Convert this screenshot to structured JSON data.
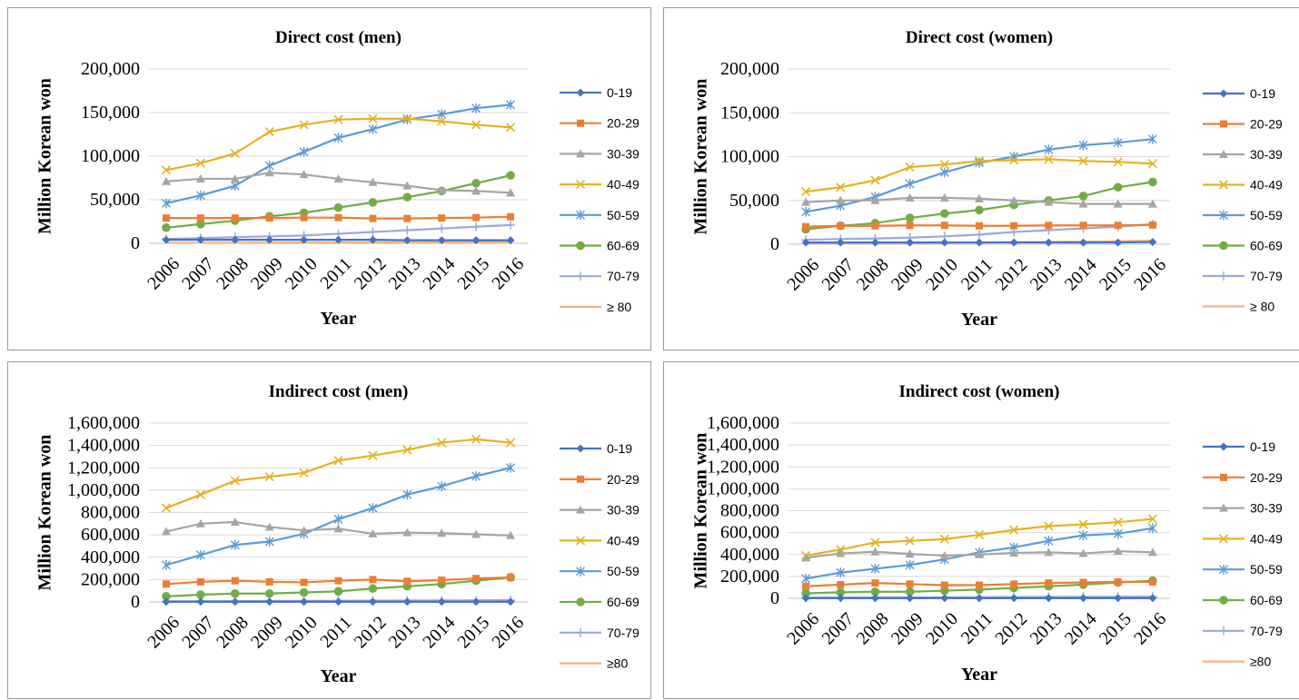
{
  "colors": {
    "0-19": "#4472c4",
    "20-29": "#ed7d31",
    "30-39": "#a5a5a5",
    "40-49": "#e6b120",
    "50-59": "#5b9bd5",
    "60-69": "#70ad47",
    "70-79": "#9aa8dc",
    "80": "#f4b183"
  },
  "chart_data": [
    {
      "type": "line",
      "title": "Direct cost (men)",
      "xlabel": "Year",
      "ylabel": "Million Korean won",
      "x": [
        "2006",
        "2007",
        "2008",
        "2009",
        "2010",
        "2011",
        "2012",
        "2013",
        "2014",
        "2015",
        "2016"
      ],
      "ylim": [
        0,
        200000
      ],
      "yticks": [
        "0",
        "50,000",
        "100,000",
        "150,000",
        "200,000"
      ],
      "grid": true,
      "legend": "right",
      "series": [
        {
          "name": "0-19",
          "marker": "diamond",
          "values": [
            4000,
            4000,
            4000,
            4000,
            4000,
            4000,
            4000,
            3500,
            3500,
            3500,
            3500
          ]
        },
        {
          "name": "20-29",
          "marker": "square",
          "values": [
            29000,
            29000,
            29000,
            29000,
            29500,
            29500,
            28500,
            28500,
            29000,
            29500,
            30500
          ]
        },
        {
          "name": "30-39",
          "marker": "triangle",
          "values": [
            71000,
            74000,
            74000,
            81000,
            79000,
            74000,
            70000,
            66000,
            61000,
            60000,
            58000
          ]
        },
        {
          "name": "40-49",
          "marker": "x",
          "values": [
            84000,
            92000,
            103000,
            128000,
            136000,
            142000,
            143000,
            143000,
            140000,
            136000,
            133000
          ]
        },
        {
          "name": "50-59",
          "marker": "star",
          "values": [
            46000,
            55000,
            66000,
            89000,
            105000,
            121000,
            131000,
            142000,
            148000,
            155000,
            159000
          ]
        },
        {
          "name": "60-69",
          "marker": "circle",
          "values": [
            18000,
            22000,
            26000,
            31000,
            35000,
            41000,
            47000,
            53000,
            60000,
            69000,
            78000
          ]
        },
        {
          "name": "70-79",
          "marker": "plus",
          "values": [
            5000,
            6000,
            7000,
            8000,
            9000,
            11000,
            13000,
            15000,
            17000,
            19000,
            21000
          ]
        },
        {
          "name": "≥ 80",
          "marker": "none",
          "values": [
            500,
            600,
            700,
            800,
            900,
            1000,
            1100,
            1200,
            1300,
            1400,
            1500
          ]
        }
      ]
    },
    {
      "type": "line",
      "title": "Direct cost (women)",
      "xlabel": "Year",
      "ylabel": "Million Korean won",
      "x": [
        "2006",
        "2007",
        "2008",
        "2009",
        "2010",
        "2011",
        "2012",
        "2013",
        "2014",
        "2015",
        "2016"
      ],
      "ylim": [
        0,
        200000
      ],
      "yticks": [
        "0",
        "50,000",
        "100,000",
        "150,000",
        "200,000"
      ],
      "grid": true,
      "legend": "right",
      "series": [
        {
          "name": "0-19",
          "marker": "diamond",
          "values": [
            2000,
            2000,
            2000,
            2000,
            2000,
            2000,
            2000,
            2000,
            2000,
            2000,
            2500
          ]
        },
        {
          "name": "20-29",
          "marker": "square",
          "values": [
            20000,
            21000,
            21000,
            21500,
            21500,
            21000,
            21000,
            21500,
            21500,
            21500,
            22000
          ]
        },
        {
          "name": "30-39",
          "marker": "triangle",
          "values": [
            48000,
            50000,
            50000,
            53000,
            53000,
            52000,
            50000,
            48000,
            46000,
            46000,
            46000
          ]
        },
        {
          "name": "40-49",
          "marker": "x",
          "values": [
            60000,
            65000,
            73000,
            88000,
            91000,
            95000,
            96000,
            97000,
            95000,
            94000,
            92000
          ]
        },
        {
          "name": "50-59",
          "marker": "star",
          "values": [
            37000,
            44000,
            54000,
            69000,
            82000,
            93000,
            100000,
            108000,
            113000,
            116000,
            120000
          ]
        },
        {
          "name": "60-69",
          "marker": "circle",
          "values": [
            17000,
            21000,
            24000,
            30000,
            35000,
            39000,
            45000,
            50000,
            55000,
            65000,
            71000
          ]
        },
        {
          "name": "70-79",
          "marker": "plus",
          "values": [
            5000,
            6000,
            6500,
            7500,
            9000,
            11000,
            14000,
            16000,
            18000,
            20000,
            23000
          ]
        },
        {
          "name": "≥ 80",
          "marker": "none",
          "values": [
            1000,
            1200,
            1400,
            1600,
            1800,
            2000,
            2300,
            2600,
            3000,
            3500,
            4000
          ]
        }
      ]
    },
    {
      "type": "line",
      "title": "Indirect cost (men)",
      "xlabel": "Year",
      "ylabel": "Million Korean won",
      "x": [
        "2006",
        "2007",
        "2008",
        "2009",
        "2010",
        "2011",
        "2012",
        "2013",
        "2014",
        "2015",
        "2016"
      ],
      "ylim": [
        0,
        1600000
      ],
      "yticks": [
        "0",
        "200,000",
        "400,000",
        "600,000",
        "800,000",
        "1,000,000",
        "1,200,000",
        "1,400,000",
        "1,600,000"
      ],
      "grid": true,
      "legend": "right",
      "series": [
        {
          "name": "0-19",
          "marker": "diamond",
          "values": [
            2000,
            2000,
            2000,
            2000,
            2000,
            2000,
            2000,
            2000,
            2000,
            2000,
            2000
          ]
        },
        {
          "name": "20-29",
          "marker": "square",
          "values": [
            160000,
            180000,
            190000,
            180000,
            175000,
            190000,
            200000,
            185000,
            195000,
            210000,
            220000
          ]
        },
        {
          "name": "30-39",
          "marker": "triangle",
          "values": [
            630000,
            700000,
            715000,
            670000,
            640000,
            655000,
            610000,
            620000,
            615000,
            605000,
            595000
          ]
        },
        {
          "name": "40-49",
          "marker": "x",
          "values": [
            840000,
            960000,
            1085000,
            1120000,
            1155000,
            1265000,
            1310000,
            1360000,
            1425000,
            1455000,
            1425000
          ]
        },
        {
          "name": "50-59",
          "marker": "star",
          "values": [
            330000,
            420000,
            510000,
            540000,
            610000,
            740000,
            840000,
            960000,
            1035000,
            1125000,
            1200000
          ]
        },
        {
          "name": "60-69",
          "marker": "circle",
          "values": [
            50000,
            65000,
            75000,
            75000,
            85000,
            95000,
            120000,
            140000,
            160000,
            190000,
            220000
          ]
        },
        {
          "name": "70-79",
          "marker": "plus",
          "values": [
            5000,
            6000,
            7000,
            8000,
            9000,
            10000,
            11000,
            12000,
            13000,
            14000,
            15000
          ]
        },
        {
          "name": "≥80",
          "marker": "none",
          "values": [
            1000,
            1000,
            1000,
            1000,
            1000,
            1000,
            1000,
            1000,
            1000,
            1000,
            1000
          ]
        }
      ]
    },
    {
      "type": "line",
      "title": "Indirect cost (women)",
      "xlabel": "Year",
      "ylabel": "Million Korean won",
      "x": [
        "2006",
        "2007",
        "2008",
        "2009",
        "2010",
        "2011",
        "2012",
        "2013",
        "2014",
        "2015",
        "2016"
      ],
      "ylim": [
        0,
        1600000
      ],
      "yticks": [
        "0",
        "200,000",
        "400,000",
        "600,000",
        "800,000",
        "1,000,000",
        "1,200,000",
        "1,400,000",
        "1,600,000"
      ],
      "grid": true,
      "legend": "right",
      "series": [
        {
          "name": "0-19",
          "marker": "diamond",
          "values": [
            2000,
            2000,
            2000,
            2000,
            2000,
            2000,
            2000,
            2000,
            2000,
            2000,
            2000
          ]
        },
        {
          "name": "20-29",
          "marker": "square",
          "values": [
            110000,
            125000,
            140000,
            130000,
            120000,
            120000,
            130000,
            140000,
            145000,
            150000,
            150000
          ]
        },
        {
          "name": "30-39",
          "marker": "triangle",
          "values": [
            370000,
            410000,
            425000,
            405000,
            390000,
            400000,
            415000,
            420000,
            410000,
            430000,
            420000
          ]
        },
        {
          "name": "40-49",
          "marker": "x",
          "values": [
            390000,
            445000,
            510000,
            525000,
            540000,
            580000,
            625000,
            660000,
            675000,
            695000,
            725000
          ]
        },
        {
          "name": "50-59",
          "marker": "star",
          "values": [
            180000,
            235000,
            270000,
            305000,
            355000,
            420000,
            465000,
            525000,
            575000,
            590000,
            640000
          ]
        },
        {
          "name": "60-69",
          "marker": "circle",
          "values": [
            45000,
            55000,
            60000,
            60000,
            70000,
            80000,
            95000,
            110000,
            125000,
            145000,
            160000
          ]
        },
        {
          "name": "70-79",
          "marker": "plus",
          "values": [
            5000,
            6000,
            7000,
            8000,
            9000,
            10000,
            11000,
            12000,
            13000,
            14000,
            15000
          ]
        },
        {
          "name": "≥80",
          "marker": "none",
          "values": [
            1000,
            1000,
            1000,
            1000,
            1000,
            1000,
            1000,
            1000,
            1000,
            1000,
            1000
          ]
        }
      ]
    }
  ]
}
